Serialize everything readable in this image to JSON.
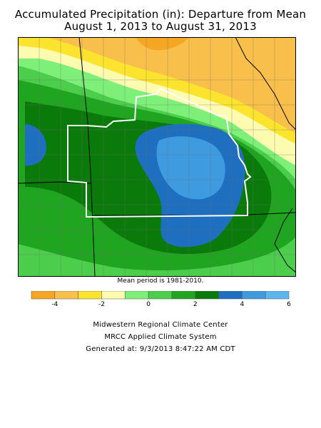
{
  "title_line1": "Accumulated Precipitation (in): Departure from Mean",
  "title_line2": "August 1, 2013 to August 31, 2013",
  "mean_period_note": "Mean period is 1981-2010.",
  "legend": {
    "colors": [
      "#f5a623",
      "#f8c04a",
      "#fbe32e",
      "#fdfbb0",
      "#7ef07a",
      "#4ccd4c",
      "#1fa51f",
      "#0a7a0a",
      "#1e6fbf",
      "#3f9be0",
      "#5bb6ee"
    ],
    "tick_labels": [
      "-4",
      "-2",
      "0",
      "2",
      "4",
      "6"
    ],
    "tick_values": [
      -4,
      -2,
      0,
      2,
      4,
      6
    ],
    "bins": [
      -5,
      -4,
      -3,
      -2,
      -1,
      0,
      1,
      2,
      3,
      4,
      5,
      6
    ]
  },
  "credits": {
    "line1": "Midwestern Regional Climate Center",
    "line2": "MRCC Applied Climate System",
    "line3": "Generated at: 9/3/2013 8:47:22 AM CDT"
  }
}
